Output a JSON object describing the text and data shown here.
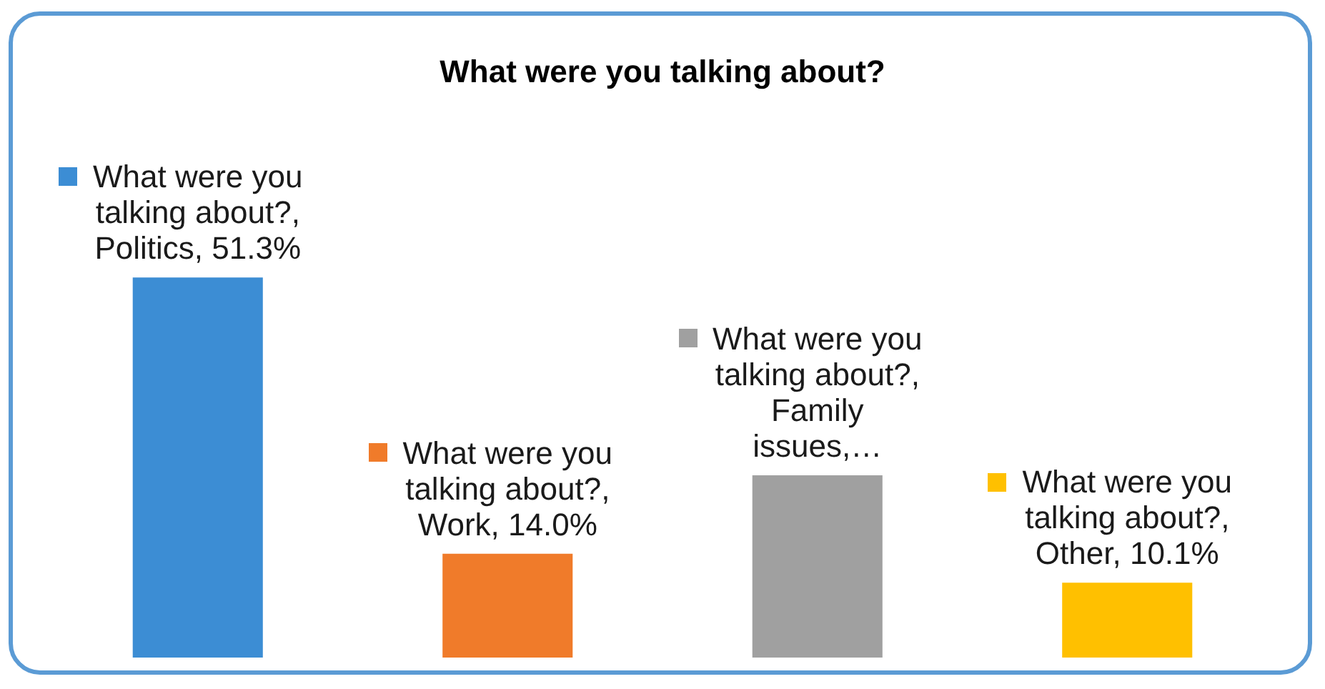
{
  "chart_data": {
    "type": "bar",
    "title": "What were you talking about?",
    "categories": [
      null,
      null,
      null,
      null
    ],
    "values": [
      51.3,
      14.0,
      24.6,
      10.1
    ],
    "colors": [
      "#3c8dd4",
      "#f07b2a",
      "#a0a0a0",
      "#ffc000"
    ],
    "value_labels": [
      "What were you talking about?, Politics, 51.3%",
      "What were you talking about?, Work, 14.0%",
      "What were you talking about?, Family issues,…",
      "What were you talking about?, Other, 10.1%"
    ],
    "legend": false
  }
}
